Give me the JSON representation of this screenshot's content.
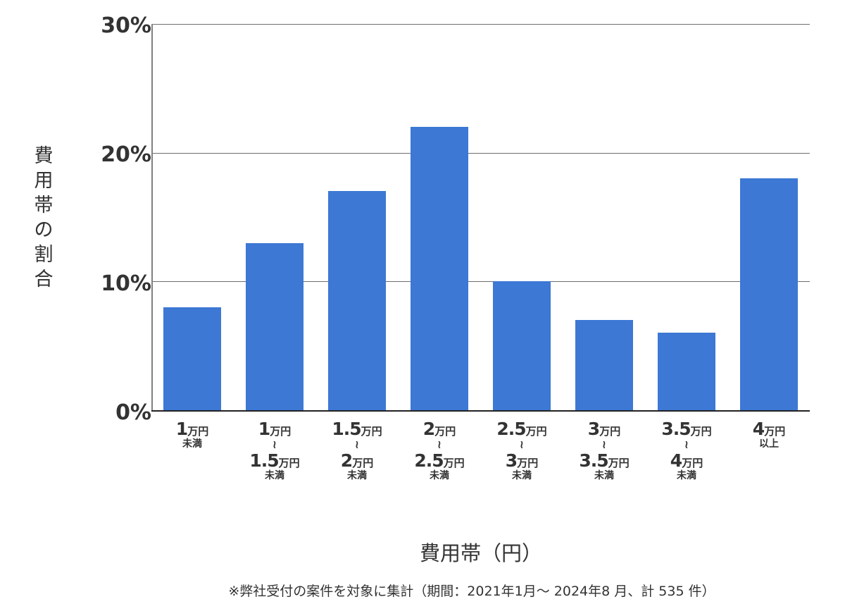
{
  "chart_data": {
    "type": "bar",
    "title": "",
    "xlabel": "費用帯（円）",
    "ylabel": "費用帯の割合",
    "ylim": [
      0,
      30
    ],
    "yticks": [
      "0%",
      "10%",
      "20%",
      "30%"
    ],
    "grid": true,
    "legend": null,
    "color": "#3c78d4",
    "categories": [
      "1万円未満",
      "1万円〜1.5万円未満",
      "1.5万円〜2万円未満",
      "2万円〜2.5万円未満",
      "2.5万円〜3万円未満",
      "3万円〜3.5万円未満",
      "3.5万円〜4万円未満",
      "4万円以上"
    ],
    "values": [
      8,
      13,
      17,
      22,
      10,
      7,
      6,
      18
    ],
    "unit": "%",
    "footnote": "※弊社受付の案件を対象に集計（期間：2021年1月〜 2024年8 月、計 535 件）"
  },
  "axis": {
    "y_ticks": [
      "30%",
      "20%",
      "10%",
      "0%"
    ],
    "y_title_chars": [
      "費",
      "用",
      "帯",
      "の",
      "割",
      "合"
    ],
    "x_title": "費用帯（円）"
  },
  "labels": [
    {
      "from_num": "1",
      "from_unit": "万円",
      "tilde": "",
      "to_num": "",
      "to_unit": "",
      "sub": "未満"
    },
    {
      "from_num": "1",
      "from_unit": "万円",
      "tilde": "〜",
      "to_num": "1.5",
      "to_unit": "万円",
      "sub": "未満"
    },
    {
      "from_num": "1.5",
      "from_unit": "万円",
      "tilde": "〜",
      "to_num": "2",
      "to_unit": "万円",
      "sub": "未満"
    },
    {
      "from_num": "2",
      "from_unit": "万円",
      "tilde": "〜",
      "to_num": "2.5",
      "to_unit": "万円",
      "sub": "未満"
    },
    {
      "from_num": "2.5",
      "from_unit": "万円",
      "tilde": "〜",
      "to_num": "3",
      "to_unit": "万円",
      "sub": "未満"
    },
    {
      "from_num": "3",
      "from_unit": "万円",
      "tilde": "〜",
      "to_num": "3.5",
      "to_unit": "万円",
      "sub": "未満"
    },
    {
      "from_num": "3.5",
      "from_unit": "万円",
      "tilde": "〜",
      "to_num": "4",
      "to_unit": "万円",
      "sub": "未満"
    },
    {
      "from_num": "4",
      "from_unit": "万円",
      "tilde": "",
      "to_num": "",
      "to_unit": "",
      "sub": "以上"
    }
  ],
  "footnote": "※弊社受付の案件を対象に集計（期間：2021年1月〜 2024年8 月、計 535 件）"
}
